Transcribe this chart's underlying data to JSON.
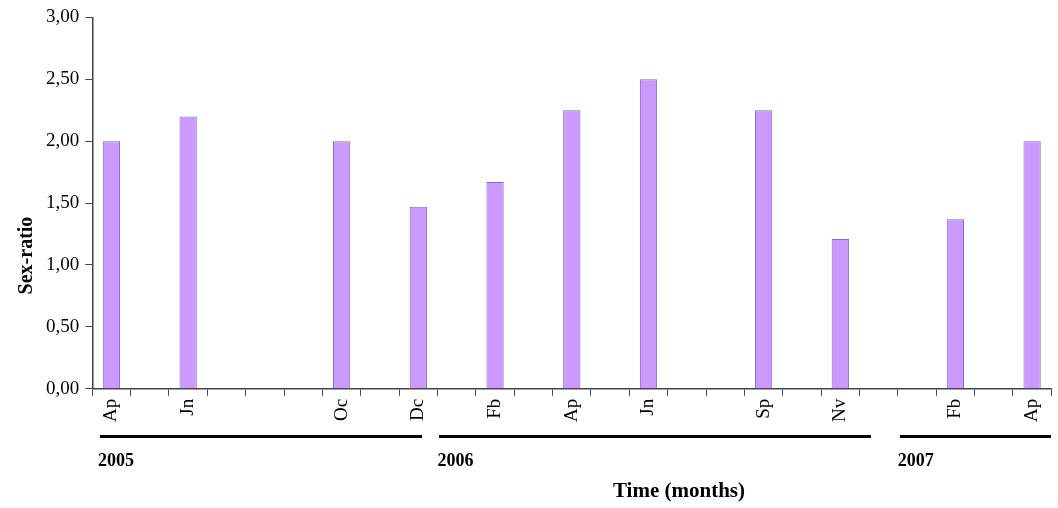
{
  "chart_data": {
    "type": "bar",
    "xlabel": "Time (months)",
    "ylabel": "Sex-ratio",
    "categories": [
      "Ap",
      null,
      "Jn",
      null,
      null,
      null,
      "Oc",
      null,
      "Dc",
      null,
      "Fb",
      null,
      "Ap",
      null,
      "Jn",
      null,
      null,
      "Sp",
      null,
      "Nv",
      null,
      null,
      "Fb",
      null,
      "Ap"
    ],
    "series": [
      {
        "color": "#cc99ff",
        "values": [
          2.0,
          null,
          2.2,
          null,
          null,
          null,
          2.0,
          null,
          1.47,
          null,
          1.67,
          null,
          2.25,
          null,
          2.5,
          null,
          null,
          2.25,
          null,
          1.21,
          null,
          null,
          1.37,
          null,
          2.0
        ]
      }
    ],
    "ylim": [
      0,
      3
    ],
    "yticks": [
      {
        "value": 0,
        "label": "0,00"
      },
      {
        "value": 0.5,
        "label": "0,50"
      },
      {
        "value": 1,
        "label": "1,00"
      },
      {
        "value": 1.5,
        "label": "1,50"
      },
      {
        "value": 2,
        "label": "2,00"
      },
      {
        "value": 2.5,
        "label": "2,50"
      },
      {
        "value": 3,
        "label": "3,00"
      }
    ],
    "annotations": [
      "2005",
      "2006",
      "2007"
    ],
    "grid": false,
    "legend": false
  }
}
